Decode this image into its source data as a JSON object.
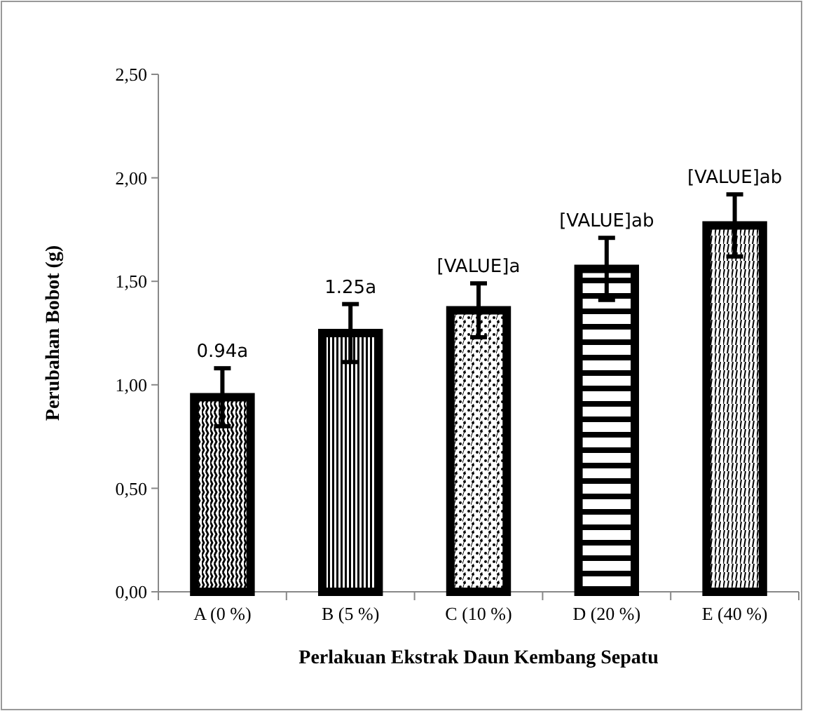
{
  "chart_data": {
    "type": "bar",
    "xlabel": "Perlakuan Ekstrak Daun Kembang Sepatu",
    "ylabel": "Perubahan Bobot (g)",
    "categories": [
      "A (0 %)",
      "B (5 %)",
      "C (10 %)",
      "D (20 %)",
      "E (40 %)"
    ],
    "values": [
      0.94,
      1.25,
      1.36,
      1.56,
      1.77
    ],
    "errors": [
      0.14,
      0.14,
      0.13,
      0.15,
      0.15
    ],
    "value_labels": [
      "0.94a",
      "1.25a",
      "[VALUE]a",
      "[VALUE]ab",
      "[VALUE]ab"
    ],
    "colors": [
      "#000000",
      "#000000",
      "#000000",
      "#000000",
      "#000000"
    ],
    "ylim": [
      0,
      2.5
    ],
    "yticks": [
      {
        "value": 0,
        "label": "0,00"
      },
      {
        "value": 0.5,
        "label": "0,50"
      },
      {
        "value": 1,
        "label": "1,00"
      },
      {
        "value": 1.5,
        "label": "1,50"
      },
      {
        "value": 2,
        "label": "2,00"
      },
      {
        "value": 2.5,
        "label": "2,50"
      }
    ],
    "grid": false
  }
}
